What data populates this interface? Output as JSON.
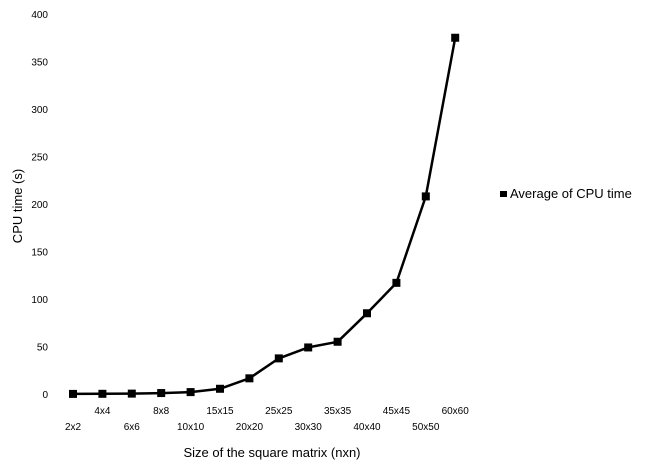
{
  "chart_data": {
    "type": "line",
    "title": "",
    "xlabel": "Size of the square matrix (nxn)",
    "ylabel": "CPU time (s)",
    "ylim": [
      0,
      400
    ],
    "yticks": [
      0,
      50,
      100,
      150,
      200,
      250,
      300,
      350,
      400
    ],
    "grid": false,
    "legend_position": "right",
    "categories": [
      "2x2",
      "4x4",
      "6x6",
      "8x8",
      "10x10",
      "15x15",
      "20x20",
      "25x25",
      "30x30",
      "35x35",
      "40x40",
      "45x45",
      "50x50",
      "60x60"
    ],
    "series": [
      {
        "name": "Average of CPU time",
        "color": "#000000",
        "marker": "square",
        "values": [
          0.1,
          0.2,
          0.4,
          1.0,
          2.0,
          5.5,
          16.5,
          37.5,
          49,
          55,
          85,
          117,
          208,
          375
        ]
      }
    ]
  }
}
